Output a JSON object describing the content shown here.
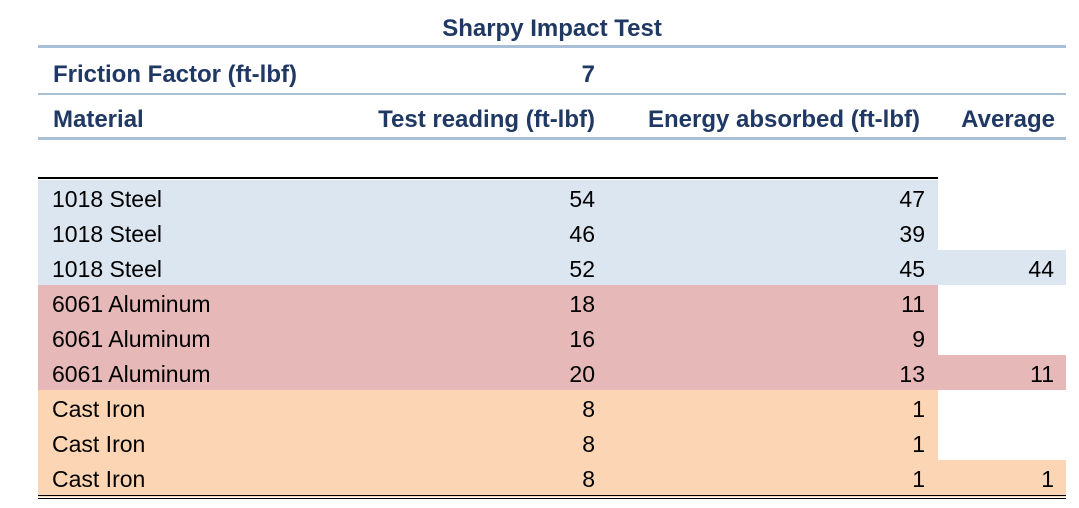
{
  "title": "Sharpy Impact Test",
  "friction": {
    "label": "Friction Factor (ft-lbf)",
    "value": "7"
  },
  "headers": {
    "material": "Material",
    "reading": "Test reading (ft-lbf)",
    "energy": "Energy absorbed (ft-lbf)",
    "average": "Average"
  },
  "colors": {
    "header_text": "#1f3864",
    "rule": "#a9bfd8",
    "steel": "#dce6f1",
    "aluminum": "#e6b8b7",
    "iron": "#fcd5b4"
  },
  "rows": [
    {
      "material": "1018 Steel",
      "reading": "54",
      "energy": "47",
      "average": ""
    },
    {
      "material": "1018 Steel",
      "reading": "46",
      "energy": "39",
      "average": ""
    },
    {
      "material": "1018 Steel",
      "reading": "52",
      "energy": "45",
      "average": "44"
    },
    {
      "material": "6061 Aluminum",
      "reading": "18",
      "energy": "11",
      "average": ""
    },
    {
      "material": "6061 Aluminum",
      "reading": "16",
      "energy": "9",
      "average": ""
    },
    {
      "material": "6061 Aluminum",
      "reading": "20",
      "energy": "13",
      "average": "11"
    },
    {
      "material": "Cast Iron",
      "reading": "8",
      "energy": "1",
      "average": ""
    },
    {
      "material": "Cast Iron",
      "reading": "8",
      "energy": "1",
      "average": ""
    },
    {
      "material": "Cast Iron",
      "reading": "8",
      "energy": "1",
      "average": "1"
    }
  ]
}
